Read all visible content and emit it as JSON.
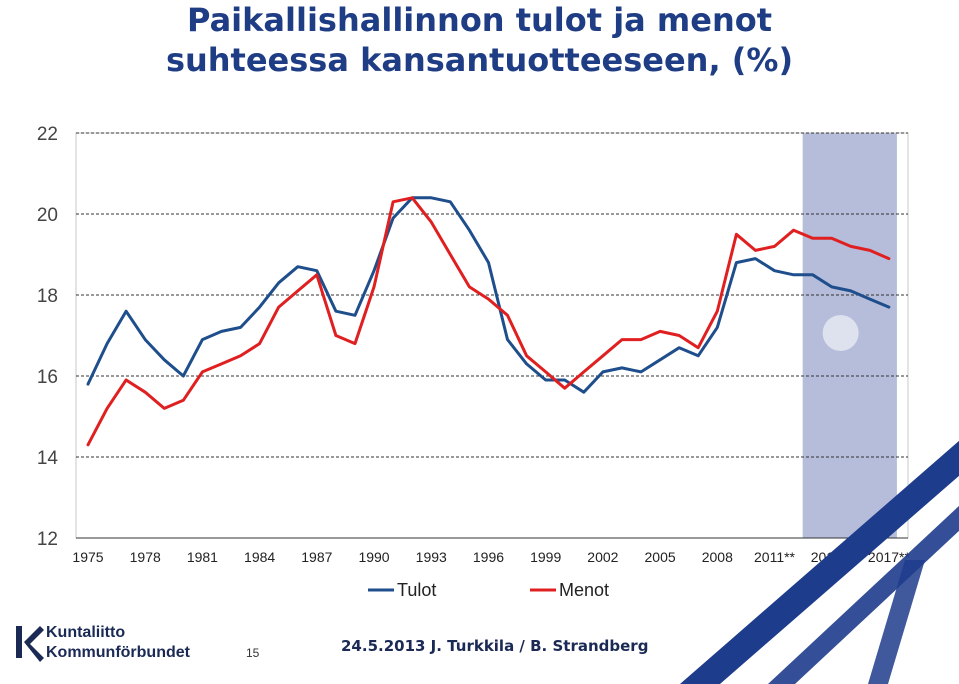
{
  "title_line1": "Paikallishallinnon tulot ja menot",
  "title_line2": "suhteessa kansantuotteeseen, (%)",
  "footer": {
    "date_author": "24.5.2013 J. Turkkila / B. Strandberg",
    "page_number": "15",
    "logo_line1": "Kuntaliitto",
    "logo_line2": "Kommunförbundet"
  },
  "colors": {
    "tulot": "#1f4e8c",
    "menot": "#e02020",
    "title": "#1f3d85",
    "forecast_band": "#aeb6d6"
  },
  "chart_data": {
    "type": "line",
    "title": "Paikallishallinnon tulot ja menot suhteessa kansantuotteeseen, (%)",
    "ylim": [
      12,
      22
    ],
    "yticks": [
      12,
      14,
      16,
      18,
      20,
      22
    ],
    "grid": true,
    "legend_position": "bottom",
    "xlim": [
      1975,
      2018
    ],
    "xtick_labels": [
      {
        "x": 1975,
        "label": "1975"
      },
      {
        "x": 1978,
        "label": "1978"
      },
      {
        "x": 1981,
        "label": "1981"
      },
      {
        "x": 1984,
        "label": "1984"
      },
      {
        "x": 1987,
        "label": "1987"
      },
      {
        "x": 1990,
        "label": "1990"
      },
      {
        "x": 1993,
        "label": "1993"
      },
      {
        "x": 1996,
        "label": "1996"
      },
      {
        "x": 1999,
        "label": "1999"
      },
      {
        "x": 2002,
        "label": "2002"
      },
      {
        "x": 2005,
        "label": "2005"
      },
      {
        "x": 2008,
        "label": "2008"
      },
      {
        "x": 2011,
        "label": "2011**"
      },
      {
        "x": 2014,
        "label": "2014**"
      },
      {
        "x": 2017,
        "label": "2017**"
      }
    ],
    "forecast_band": [
      2013,
      2017
    ],
    "x": [
      1975,
      1976,
      1977,
      1978,
      1979,
      1980,
      1981,
      1982,
      1983,
      1984,
      1985,
      1986,
      1987,
      1988,
      1989,
      1990,
      1991,
      1992,
      1993,
      1994,
      1995,
      1996,
      1997,
      1998,
      1999,
      2000,
      2001,
      2002,
      2003,
      2004,
      2005,
      2006,
      2007,
      2008,
      2009,
      2010,
      2011,
      2012,
      2013,
      2014,
      2015,
      2016,
      2017
    ],
    "series": [
      {
        "name": "Tulot",
        "color": "#1f4e8c",
        "values": [
          15.8,
          16.8,
          17.6,
          16.9,
          16.4,
          16.0,
          16.9,
          17.1,
          17.2,
          17.7,
          18.3,
          18.7,
          18.6,
          17.6,
          17.5,
          18.6,
          19.9,
          20.4,
          20.4,
          20.3,
          19.6,
          18.8,
          16.9,
          16.3,
          15.9,
          15.9,
          15.6,
          16.1,
          16.2,
          16.1,
          16.4,
          16.7,
          16.5,
          17.2,
          18.8,
          18.9,
          18.6,
          18.5,
          18.5,
          18.2,
          18.1,
          17.9,
          17.7
        ]
      },
      {
        "name": "Menot",
        "color": "#e02020",
        "values": [
          14.3,
          15.2,
          15.9,
          15.6,
          15.2,
          15.4,
          16.1,
          16.3,
          16.5,
          16.8,
          17.7,
          18.1,
          18.5,
          17.0,
          16.8,
          18.2,
          20.3,
          20.4,
          19.8,
          19.0,
          18.2,
          17.9,
          17.5,
          16.5,
          16.1,
          15.7,
          16.1,
          16.5,
          16.9,
          16.9,
          17.1,
          17.0,
          16.7,
          17.6,
          19.5,
          19.1,
          19.2,
          19.6,
          19.4,
          19.4,
          19.2,
          19.1,
          18.9
        ]
      }
    ]
  }
}
